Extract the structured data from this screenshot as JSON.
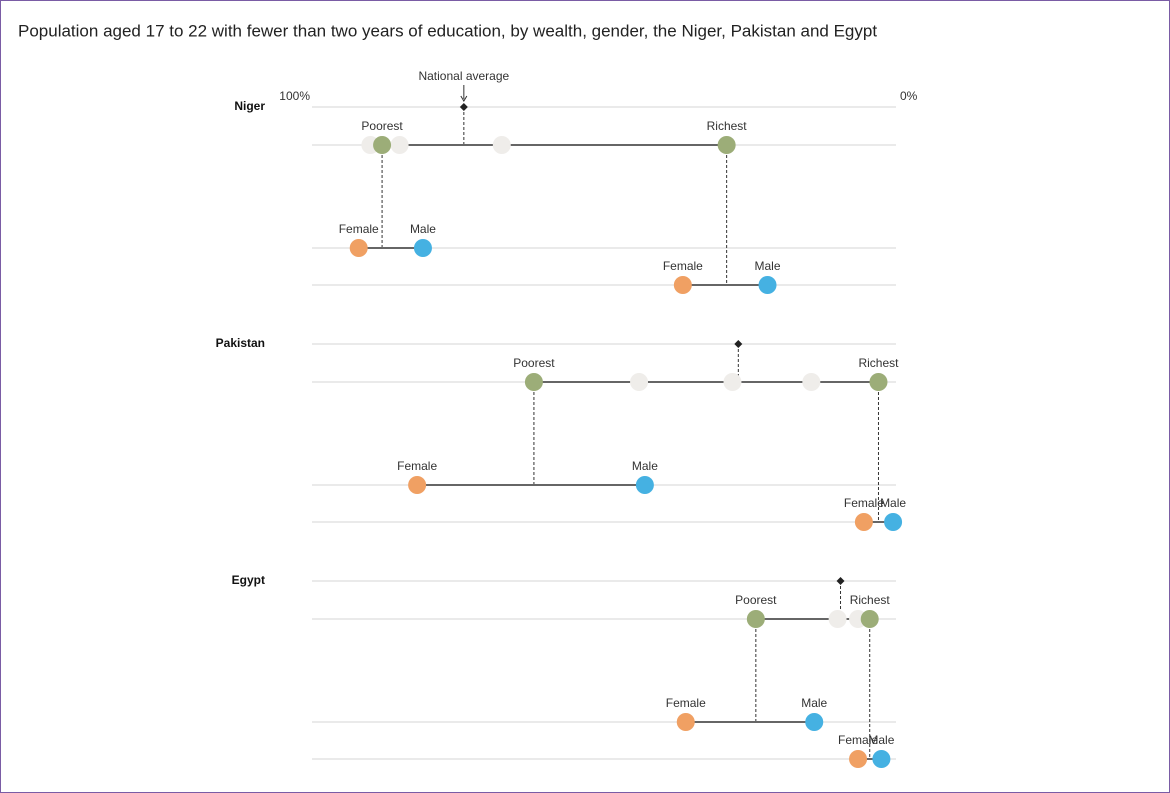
{
  "chart_data": {
    "type": "dumbbell",
    "title": "Population aged 17 to 22 with fewer than two years of education, by wealth, gender, the Niger, Pakistan and Egypt",
    "annotation": "National average",
    "xlim": [
      100,
      0
    ],
    "xticks": [
      {
        "value": 100,
        "label": "100%"
      },
      {
        "value": 0,
        "label": "0%"
      }
    ],
    "colors": {
      "wealth": "#9cad78",
      "female": "#f0a063",
      "male": "#45b1e2",
      "quintile": "#efedea"
    },
    "countries": [
      {
        "name": "Niger",
        "average": 74,
        "quintiles": [
          90,
          85,
          67.5
        ],
        "poorest": {
          "label": "Poorest",
          "value": 88,
          "female": {
            "label": "Female",
            "value": 92
          },
          "male": {
            "label": "Male",
            "value": 81
          }
        },
        "richest": {
          "label": "Richest",
          "value": 29,
          "female": {
            "label": "Female",
            "value": 36.5
          },
          "male": {
            "label": "Male",
            "value": 22
          }
        }
      },
      {
        "name": "Pakistan",
        "average": 27,
        "quintiles": [
          44,
          28,
          14.5
        ],
        "poorest": {
          "label": "Poorest",
          "value": 62,
          "female": {
            "label": "Female",
            "value": 82
          },
          "male": {
            "label": "Male",
            "value": 43
          }
        },
        "richest": {
          "label": "Richest",
          "value": 3,
          "female": {
            "label": "Female",
            "value": 5.5
          },
          "male": {
            "label": "Male",
            "value": 0.5
          }
        }
      },
      {
        "name": "Egypt",
        "average": 9.5,
        "quintiles": [
          10,
          6.5
        ],
        "poorest": {
          "label": "Poorest",
          "value": 24,
          "female": {
            "label": "Female",
            "value": 36
          },
          "male": {
            "label": "Male",
            "value": 14
          }
        },
        "richest": {
          "label": "Richest",
          "value": 4.5,
          "female": {
            "label": "Female",
            "value": 6.5
          },
          "male": {
            "label": "Male",
            "value": 2.5
          }
        }
      }
    ]
  }
}
